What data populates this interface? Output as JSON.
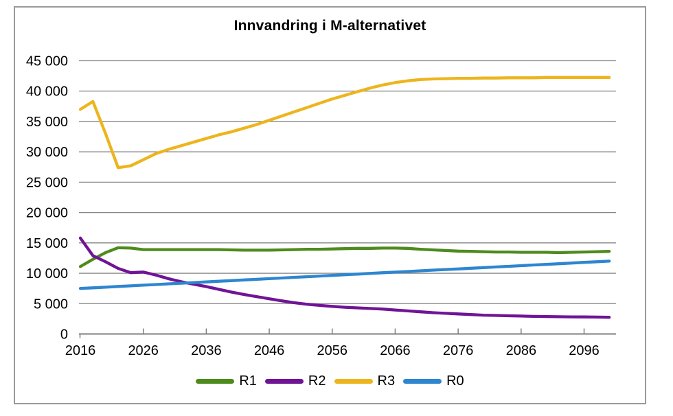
{
  "chart_data": {
    "type": "line",
    "title": "Innvandring i M-alternativet",
    "xlabel": "",
    "ylabel": "",
    "xlim": [
      2016,
      2101
    ],
    "ylim": [
      0,
      45000
    ],
    "grid": true,
    "legend_position": "bottom",
    "x_ticks": [
      2016,
      2026,
      2036,
      2046,
      2056,
      2066,
      2076,
      2086,
      2096
    ],
    "x_tick_labels": [
      "2016",
      "2026",
      "2036",
      "2046",
      "2056",
      "2066",
      "2076",
      "2086",
      "2096"
    ],
    "y_ticks": [
      0,
      5000,
      10000,
      15000,
      20000,
      25000,
      30000,
      35000,
      40000,
      45000
    ],
    "y_tick_labels": [
      "0",
      "5 000",
      "10 000",
      "15 000",
      "20 000",
      "25 000",
      "30 000",
      "35 000",
      "40 000",
      "45 000"
    ],
    "x": [
      2016,
      2018,
      2020,
      2022,
      2024,
      2026,
      2028,
      2030,
      2032,
      2034,
      2036,
      2038,
      2040,
      2042,
      2044,
      2046,
      2048,
      2050,
      2052,
      2054,
      2056,
      2058,
      2060,
      2062,
      2064,
      2066,
      2068,
      2070,
      2072,
      2074,
      2076,
      2078,
      2080,
      2082,
      2084,
      2086,
      2088,
      2090,
      2092,
      2094,
      2096,
      2098,
      2100
    ],
    "series": [
      {
        "name": "R1",
        "color": "#4e8b1d",
        "values": [
          11100,
          12300,
          13400,
          14200,
          14150,
          13900,
          13900,
          13900,
          13900,
          13900,
          13900,
          13900,
          13850,
          13800,
          13800,
          13800,
          13850,
          13900,
          13950,
          13950,
          14000,
          14050,
          14100,
          14100,
          14150,
          14150,
          14100,
          13950,
          13850,
          13750,
          13650,
          13600,
          13550,
          13500,
          13500,
          13450,
          13450,
          13450,
          13400,
          13450,
          13500,
          13550,
          13600
        ]
      },
      {
        "name": "R2",
        "color": "#701496",
        "values": [
          15800,
          12900,
          11900,
          10800,
          10100,
          10200,
          9700,
          9100,
          8600,
          8200,
          7800,
          7350,
          6900,
          6500,
          6150,
          5800,
          5450,
          5150,
          4900,
          4700,
          4550,
          4400,
          4300,
          4200,
          4100,
          3950,
          3800,
          3650,
          3500,
          3400,
          3300,
          3200,
          3100,
          3050,
          3000,
          2950,
          2900,
          2870,
          2840,
          2820,
          2800,
          2780,
          2750
        ]
      },
      {
        "name": "R3",
        "color": "#edb51d",
        "values": [
          37000,
          38300,
          33000,
          27400,
          27700,
          28700,
          29700,
          30400,
          31000,
          31600,
          32200,
          32800,
          33300,
          33900,
          34500,
          35200,
          35900,
          36600,
          37300,
          38000,
          38700,
          39300,
          39900,
          40500,
          41000,
          41400,
          41700,
          41900,
          42000,
          42050,
          42100,
          42100,
          42150,
          42150,
          42200,
          42200,
          42200,
          42250,
          42250,
          42250,
          42250,
          42250,
          42250
        ]
      },
      {
        "name": "R0",
        "color": "#2e86d0",
        "values": [
          7500,
          7600,
          7710,
          7820,
          7930,
          8040,
          8140,
          8250,
          8360,
          8470,
          8570,
          8680,
          8790,
          8900,
          9000,
          9110,
          9220,
          9330,
          9430,
          9540,
          9650,
          9760,
          9860,
          9970,
          10080,
          10190,
          10290,
          10400,
          10510,
          10620,
          10710,
          10820,
          10930,
          11040,
          11140,
          11250,
          11360,
          11470,
          11570,
          11680,
          11790,
          11890,
          12000
        ]
      }
    ],
    "colors": {
      "grid": "#868686",
      "axis": "#7f7f7f",
      "frame_border": "#9a9a9a",
      "text": "#000000",
      "background": "#ffffff"
    }
  }
}
